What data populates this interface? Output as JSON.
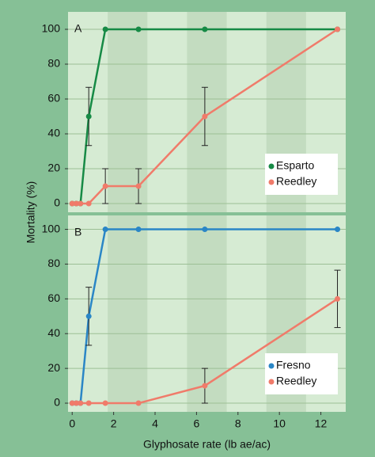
{
  "chart_data": [
    {
      "type": "line",
      "panel": "A",
      "y_label": "Mortality (%)",
      "x": [
        0,
        0.2,
        0.4,
        0.8,
        1.6,
        3.2,
        6.4,
        12.8
      ],
      "xlim": [
        -0.2,
        13.2
      ],
      "ylim": [
        -5,
        110
      ],
      "yticks": [
        0,
        20,
        40,
        60,
        80,
        100
      ],
      "grid": true,
      "legend": "lower right",
      "series": [
        {
          "name": "Esparto",
          "color": "#168a45",
          "values": [
            0,
            0,
            0,
            50,
            100,
            100,
            100,
            100
          ],
          "errors": [
            null,
            null,
            null,
            16.7,
            null,
            null,
            null,
            null
          ]
        },
        {
          "name": "Reedley",
          "color": "#f07b6a",
          "values": [
            0,
            0,
            0,
            0,
            10,
            10,
            50,
            100
          ],
          "errors": [
            null,
            null,
            null,
            null,
            10,
            10,
            16.7,
            null
          ]
        }
      ]
    },
    {
      "type": "line",
      "panel": "B",
      "x_label": "Glyphosate rate (lb ae/ac)",
      "x": [
        0,
        0.2,
        0.4,
        0.8,
        1.6,
        3.2,
        6.4,
        12.8
      ],
      "xlim": [
        -0.2,
        13.2
      ],
      "xticks": [
        0,
        2,
        4,
        6,
        8,
        10,
        12
      ],
      "ylim": [
        -5,
        108
      ],
      "yticks": [
        0,
        20,
        40,
        60,
        80,
        100
      ],
      "grid": true,
      "legend": "lower right",
      "series": [
        {
          "name": "Fresno",
          "color": "#2a86c6",
          "values": [
            0,
            0,
            0,
            50,
            100,
            100,
            100,
            100
          ],
          "errors": [
            null,
            null,
            null,
            16.7,
            null,
            null,
            null,
            null
          ]
        },
        {
          "name": "Reedley",
          "color": "#f07b6a",
          "values": [
            0,
            0,
            0,
            0,
            0,
            0,
            10,
            60
          ],
          "errors": [
            null,
            null,
            null,
            null,
            null,
            null,
            10,
            16.5
          ]
        }
      ]
    }
  ]
}
